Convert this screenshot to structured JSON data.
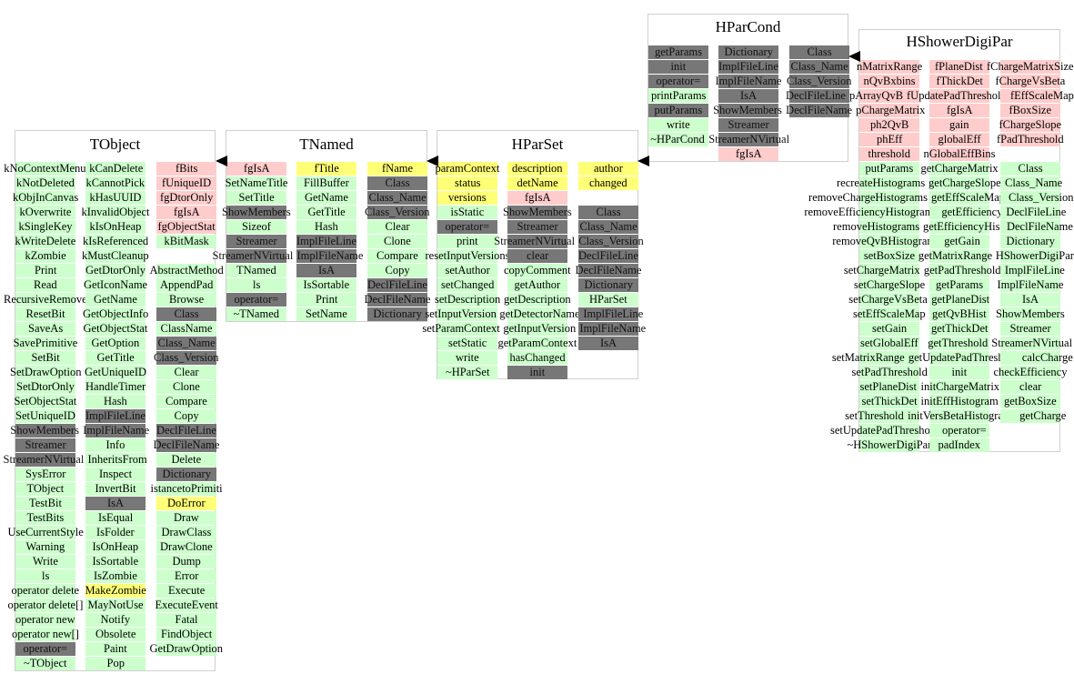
{
  "colors": {
    "method": "#ccffcc",
    "static_member": "#ffcccc",
    "data_member": "#ffff77",
    "generated": "#777777"
  },
  "classes": [
    {
      "id": "TObject",
      "title": "TObject",
      "columns": [
        [
          [
            "kNoContextMenu",
            "g"
          ],
          [
            "kNotDeleted",
            "g"
          ],
          [
            "kObjInCanvas",
            "g"
          ],
          [
            "kOverwrite",
            "g"
          ],
          [
            "kSingleKey",
            "g"
          ],
          [
            "kWriteDelete",
            "g"
          ],
          [
            "kZombie",
            "g"
          ],
          [
            "Print",
            "g"
          ],
          [
            "Read",
            "g"
          ],
          [
            "RecursiveRemove",
            "g"
          ],
          [
            "ResetBit",
            "g"
          ],
          [
            "SaveAs",
            "g"
          ],
          [
            "SavePrimitive",
            "g"
          ],
          [
            "SetBit",
            "g"
          ],
          [
            "SetDrawOption",
            "g"
          ],
          [
            "SetDtorOnly",
            "g"
          ],
          [
            "SetObjectStat",
            "g"
          ],
          [
            "SetUniqueID",
            "g"
          ],
          [
            "ShowMembers",
            "d"
          ],
          [
            "Streamer",
            "d"
          ],
          [
            "StreamerNVirtual",
            "d"
          ],
          [
            "SysError",
            "g"
          ],
          [
            "TObject",
            "g"
          ],
          [
            "TestBit",
            "g"
          ],
          [
            "TestBits",
            "g"
          ],
          [
            "UseCurrentStyle",
            "g"
          ],
          [
            "Warning",
            "g"
          ],
          [
            "Write",
            "g"
          ],
          [
            "ls",
            "g"
          ],
          [
            "operator delete",
            "g"
          ],
          [
            "operator delete[]",
            "g"
          ],
          [
            "operator new",
            "g"
          ],
          [
            "operator new[]",
            "g"
          ],
          [
            "operator=",
            "d"
          ],
          [
            "~TObject",
            "g"
          ]
        ],
        [
          [
            "kCanDelete",
            "g"
          ],
          [
            "kCannotPick",
            "g"
          ],
          [
            "kHasUUID",
            "g"
          ],
          [
            "kInvalidObject",
            "g"
          ],
          [
            "kIsOnHeap",
            "g"
          ],
          [
            "kIsReferenced",
            "g"
          ],
          [
            "kMustCleanup",
            "g"
          ],
          [
            "GetDtorOnly",
            "g"
          ],
          [
            "GetIconName",
            "g"
          ],
          [
            "GetName",
            "g"
          ],
          [
            "GetObjectInfo",
            "g"
          ],
          [
            "GetObjectStat",
            "g"
          ],
          [
            "GetOption",
            "g"
          ],
          [
            "GetTitle",
            "g"
          ],
          [
            "GetUniqueID",
            "g"
          ],
          [
            "HandleTimer",
            "g"
          ],
          [
            "Hash",
            "g"
          ],
          [
            "ImplFileLine",
            "d"
          ],
          [
            "ImplFileName",
            "d"
          ],
          [
            "Info",
            "g"
          ],
          [
            "InheritsFrom",
            "g"
          ],
          [
            "Inspect",
            "g"
          ],
          [
            "InvertBit",
            "g"
          ],
          [
            "IsA",
            "d"
          ],
          [
            "IsEqual",
            "g"
          ],
          [
            "IsFolder",
            "g"
          ],
          [
            "IsOnHeap",
            "g"
          ],
          [
            "IsSortable",
            "g"
          ],
          [
            "IsZombie",
            "g"
          ],
          [
            "MakeZombie",
            "y"
          ],
          [
            "MayNotUse",
            "g"
          ],
          [
            "Notify",
            "g"
          ],
          [
            "Obsolete",
            "g"
          ],
          [
            "Paint",
            "g"
          ],
          [
            "Pop",
            "g"
          ]
        ],
        [
          [
            "fBits",
            "p"
          ],
          [
            "fUniqueID",
            "p"
          ],
          [
            "fgDtorOnly",
            "p"
          ],
          [
            "fgIsA",
            "p"
          ],
          [
            "fgObjectStat",
            "p"
          ],
          [
            "kBitMask",
            "g"
          ],
          null,
          [
            "AbstractMethod",
            "g"
          ],
          [
            "AppendPad",
            "g"
          ],
          [
            "Browse",
            "g"
          ],
          [
            "Class",
            "d"
          ],
          [
            "ClassName",
            "g"
          ],
          [
            "Class_Name",
            "d"
          ],
          [
            "Class_Version",
            "d"
          ],
          [
            "Clear",
            "g"
          ],
          [
            "Clone",
            "g"
          ],
          [
            "Compare",
            "g"
          ],
          [
            "Copy",
            "g"
          ],
          [
            "DeclFileLine",
            "d"
          ],
          [
            "DeclFileName",
            "d"
          ],
          [
            "Delete",
            "g"
          ],
          [
            "Dictionary",
            "d"
          ],
          [
            "istancetoPrimiti",
            "g"
          ],
          [
            "DoError",
            "y"
          ],
          [
            "Draw",
            "g"
          ],
          [
            "DrawClass",
            "g"
          ],
          [
            "DrawClone",
            "g"
          ],
          [
            "Dump",
            "g"
          ],
          [
            "Error",
            "g"
          ],
          [
            "Execute",
            "g"
          ],
          [
            "ExecuteEvent",
            "g"
          ],
          [
            "Fatal",
            "g"
          ],
          [
            "FindObject",
            "g"
          ],
          [
            "GetDrawOption",
            "g"
          ]
        ]
      ]
    },
    {
      "id": "TNamed",
      "title": "TNamed",
      "columns": [
        [
          [
            "fgIsA",
            "p"
          ],
          [
            "SetNameTitle",
            "g"
          ],
          [
            "SetTitle",
            "g"
          ],
          [
            "ShowMembers",
            "d"
          ],
          [
            "Sizeof",
            "g"
          ],
          [
            "Streamer",
            "d"
          ],
          [
            "StreamerNVirtual",
            "d"
          ],
          [
            "TNamed",
            "g"
          ],
          [
            "ls",
            "g"
          ],
          [
            "operator=",
            "d"
          ],
          [
            "~TNamed",
            "g"
          ]
        ],
        [
          [
            "fTitle",
            "y"
          ],
          [
            "FillBuffer",
            "g"
          ],
          [
            "GetName",
            "g"
          ],
          [
            "GetTitle",
            "g"
          ],
          [
            "Hash",
            "g"
          ],
          [
            "ImplFileLine",
            "d"
          ],
          [
            "ImplFileName",
            "d"
          ],
          [
            "IsA",
            "d"
          ],
          [
            "IsSortable",
            "g"
          ],
          [
            "Print",
            "g"
          ],
          [
            "SetName",
            "g"
          ]
        ],
        [
          [
            "fName",
            "y"
          ],
          [
            "Class",
            "d"
          ],
          [
            "Class_Name",
            "d"
          ],
          [
            "Class_Version",
            "d"
          ],
          [
            "Clear",
            "g"
          ],
          [
            "Clone",
            "g"
          ],
          [
            "Compare",
            "g"
          ],
          [
            "Copy",
            "g"
          ],
          [
            "DeclFileLine",
            "d"
          ],
          [
            "DeclFileName",
            "d"
          ],
          [
            "Dictionary",
            "d"
          ]
        ]
      ]
    },
    {
      "id": "HParSet",
      "title": "HParSet",
      "columns": [
        [
          [
            "paramContext",
            "y"
          ],
          [
            "status",
            "y"
          ],
          [
            "versions",
            "y"
          ],
          [
            "isStatic",
            "g"
          ],
          [
            "operator=",
            "d"
          ],
          [
            "print",
            "g"
          ],
          [
            "resetInputVersions",
            "g"
          ],
          [
            "setAuthor",
            "g"
          ],
          [
            "setChanged",
            "g"
          ],
          [
            "setDescription",
            "g"
          ],
          [
            "setInputVersion",
            "g"
          ],
          [
            "setParamContext",
            "g"
          ],
          [
            "setStatic",
            "g"
          ],
          [
            "write",
            "g"
          ],
          [
            "~HParSet",
            "g"
          ]
        ],
        [
          [
            "description",
            "y"
          ],
          [
            "detName",
            "y"
          ],
          [
            "fgIsA",
            "p"
          ],
          [
            "ShowMembers",
            "d"
          ],
          [
            "Streamer",
            "d"
          ],
          [
            "StreamerNVirtual",
            "d"
          ],
          [
            "clear",
            "d"
          ],
          [
            "copyComment",
            "g"
          ],
          [
            "getAuthor",
            "g"
          ],
          [
            "getDescription",
            "g"
          ],
          [
            "getDetectorName",
            "g"
          ],
          [
            "getInputVersion",
            "g"
          ],
          [
            "getParamContext",
            "g"
          ],
          [
            "hasChanged",
            "g"
          ],
          [
            "init",
            "d"
          ]
        ],
        [
          [
            "author",
            "y"
          ],
          [
            "changed",
            "y"
          ],
          null,
          [
            "Class",
            "d"
          ],
          [
            "Class_Name",
            "d"
          ],
          [
            "Class_Version",
            "d"
          ],
          [
            "DeclFileLine",
            "d"
          ],
          [
            "DeclFileName",
            "d"
          ],
          [
            "Dictionary",
            "d"
          ],
          [
            "HParSet",
            "g"
          ],
          [
            "ImplFileLine",
            "d"
          ],
          [
            "ImplFileName",
            "d"
          ],
          [
            "IsA",
            "d"
          ]
        ]
      ]
    },
    {
      "id": "HParCond",
      "title": "HParCond",
      "columns": [
        [
          [
            "getParams",
            "d"
          ],
          [
            "init",
            "d"
          ],
          [
            "operator=",
            "d"
          ],
          [
            "printParams",
            "g"
          ],
          [
            "putParams",
            "d"
          ],
          [
            "write",
            "g"
          ],
          [
            "~HParCond",
            "g"
          ]
        ],
        [
          [
            "Dictionary",
            "d"
          ],
          [
            "ImplFileLine",
            "d"
          ],
          [
            "ImplFileName",
            "d"
          ],
          [
            "IsA",
            "d"
          ],
          [
            "ShowMembers",
            "d"
          ],
          [
            "Streamer",
            "d"
          ],
          [
            "StreamerNVirtual",
            "d"
          ],
          [
            "fgIsA",
            "p"
          ]
        ],
        [
          [
            "Class",
            "d"
          ],
          [
            "Class_Name",
            "d"
          ],
          [
            "Class_Version",
            "d"
          ],
          [
            "DeclFileLine",
            "d"
          ],
          [
            "DeclFileName",
            "d"
          ]
        ]
      ]
    },
    {
      "id": "HShowerDigiPar",
      "title": "HShowerDigiPar",
      "columns": [
        [
          [
            "nMatrixRange",
            "p"
          ],
          [
            "nQvBxbins",
            "p"
          ],
          [
            "pArrayQvB",
            "p"
          ],
          [
            "pChargeMatrix",
            "p"
          ],
          [
            "ph2QvB",
            "p"
          ],
          [
            "phEff",
            "p"
          ],
          [
            "threshold",
            "p"
          ],
          [
            "putParams",
            "g"
          ],
          [
            "recreateHistograms",
            "g"
          ],
          [
            "removeChargeHistograms",
            "g"
          ],
          [
            "removeEfficiencyHistograms",
            "g"
          ],
          [
            "removeHistograms",
            "g"
          ],
          [
            "removeQvBHistograms",
            "g"
          ],
          [
            "setBoxSize",
            "g"
          ],
          [
            "setChargeMatrix",
            "g"
          ],
          [
            "setChargeSlope",
            "g"
          ],
          [
            "setChargeVsBeta",
            "g"
          ],
          [
            "setEffScaleMap",
            "g"
          ],
          [
            "setGain",
            "g"
          ],
          [
            "setGlobalEff",
            "g"
          ],
          [
            "setMatrixRange",
            "g"
          ],
          [
            "setPadThreshold",
            "g"
          ],
          [
            "setPlaneDist",
            "g"
          ],
          [
            "setThickDet",
            "g"
          ],
          [
            "setThreshold",
            "g"
          ],
          [
            "setUpdatePadThreshold",
            "g"
          ],
          [
            "~HShowerDigiPar",
            "g"
          ]
        ],
        [
          [
            "fPlaneDist",
            "p"
          ],
          [
            "fThickDet",
            "p"
          ],
          [
            "fUpdatePadThreshold",
            "p"
          ],
          [
            "fgIsA",
            "p"
          ],
          [
            "gain",
            "p"
          ],
          [
            "globalEff",
            "p"
          ],
          [
            "nGlobalEffBins",
            "p"
          ],
          [
            "getChargeMatrix",
            "g"
          ],
          [
            "getChargeSlope",
            "g"
          ],
          [
            "getEffScaleMap",
            "g"
          ],
          [
            "getEfficiency",
            "g"
          ],
          [
            "getEfficiencyHist",
            "g"
          ],
          [
            "getGain",
            "g"
          ],
          [
            "getMatrixRange",
            "g"
          ],
          [
            "getPadThreshold",
            "g"
          ],
          [
            "getParams",
            "g"
          ],
          [
            "getPlaneDist",
            "g"
          ],
          [
            "getQvBHist",
            "g"
          ],
          [
            "getThickDet",
            "g"
          ],
          [
            "getThreshold",
            "g"
          ],
          [
            "getUpdatePadThreshold",
            "g"
          ],
          [
            "init",
            "g"
          ],
          [
            "initChargeMatrix",
            "g"
          ],
          [
            "initEffHistogram",
            "g"
          ],
          [
            "initVersBetaHistograms",
            "g"
          ],
          [
            "operator=",
            "g"
          ],
          [
            "padIndex",
            "g"
          ]
        ],
        [
          [
            "fChargeMatrixSize",
            "p"
          ],
          [
            "fChargeVsBeta",
            "p"
          ],
          [
            "fEffScaleMap",
            "p"
          ],
          [
            "fBoxSize",
            "p"
          ],
          [
            "fChargeSlope",
            "p"
          ],
          [
            "fPadThreshold",
            "p"
          ],
          null,
          [
            "Class",
            "g"
          ],
          [
            "Class_Name",
            "g"
          ],
          [
            "Class_Version",
            "g"
          ],
          [
            "DeclFileLine",
            "g"
          ],
          [
            "DeclFileName",
            "g"
          ],
          [
            "Dictionary",
            "g"
          ],
          [
            "HShowerDigiPar",
            "g"
          ],
          [
            "ImplFileLine",
            "g"
          ],
          [
            "ImplFileName",
            "g"
          ],
          [
            "IsA",
            "g"
          ],
          [
            "ShowMembers",
            "g"
          ],
          [
            "Streamer",
            "g"
          ],
          [
            "StreamerNVirtual",
            "g"
          ],
          [
            "calcCharge",
            "g"
          ],
          [
            "checkEfficiency",
            "g"
          ],
          [
            "clear",
            "g"
          ],
          [
            "getBoxSize",
            "g"
          ],
          [
            "getCharge",
            "g"
          ]
        ]
      ]
    }
  ]
}
